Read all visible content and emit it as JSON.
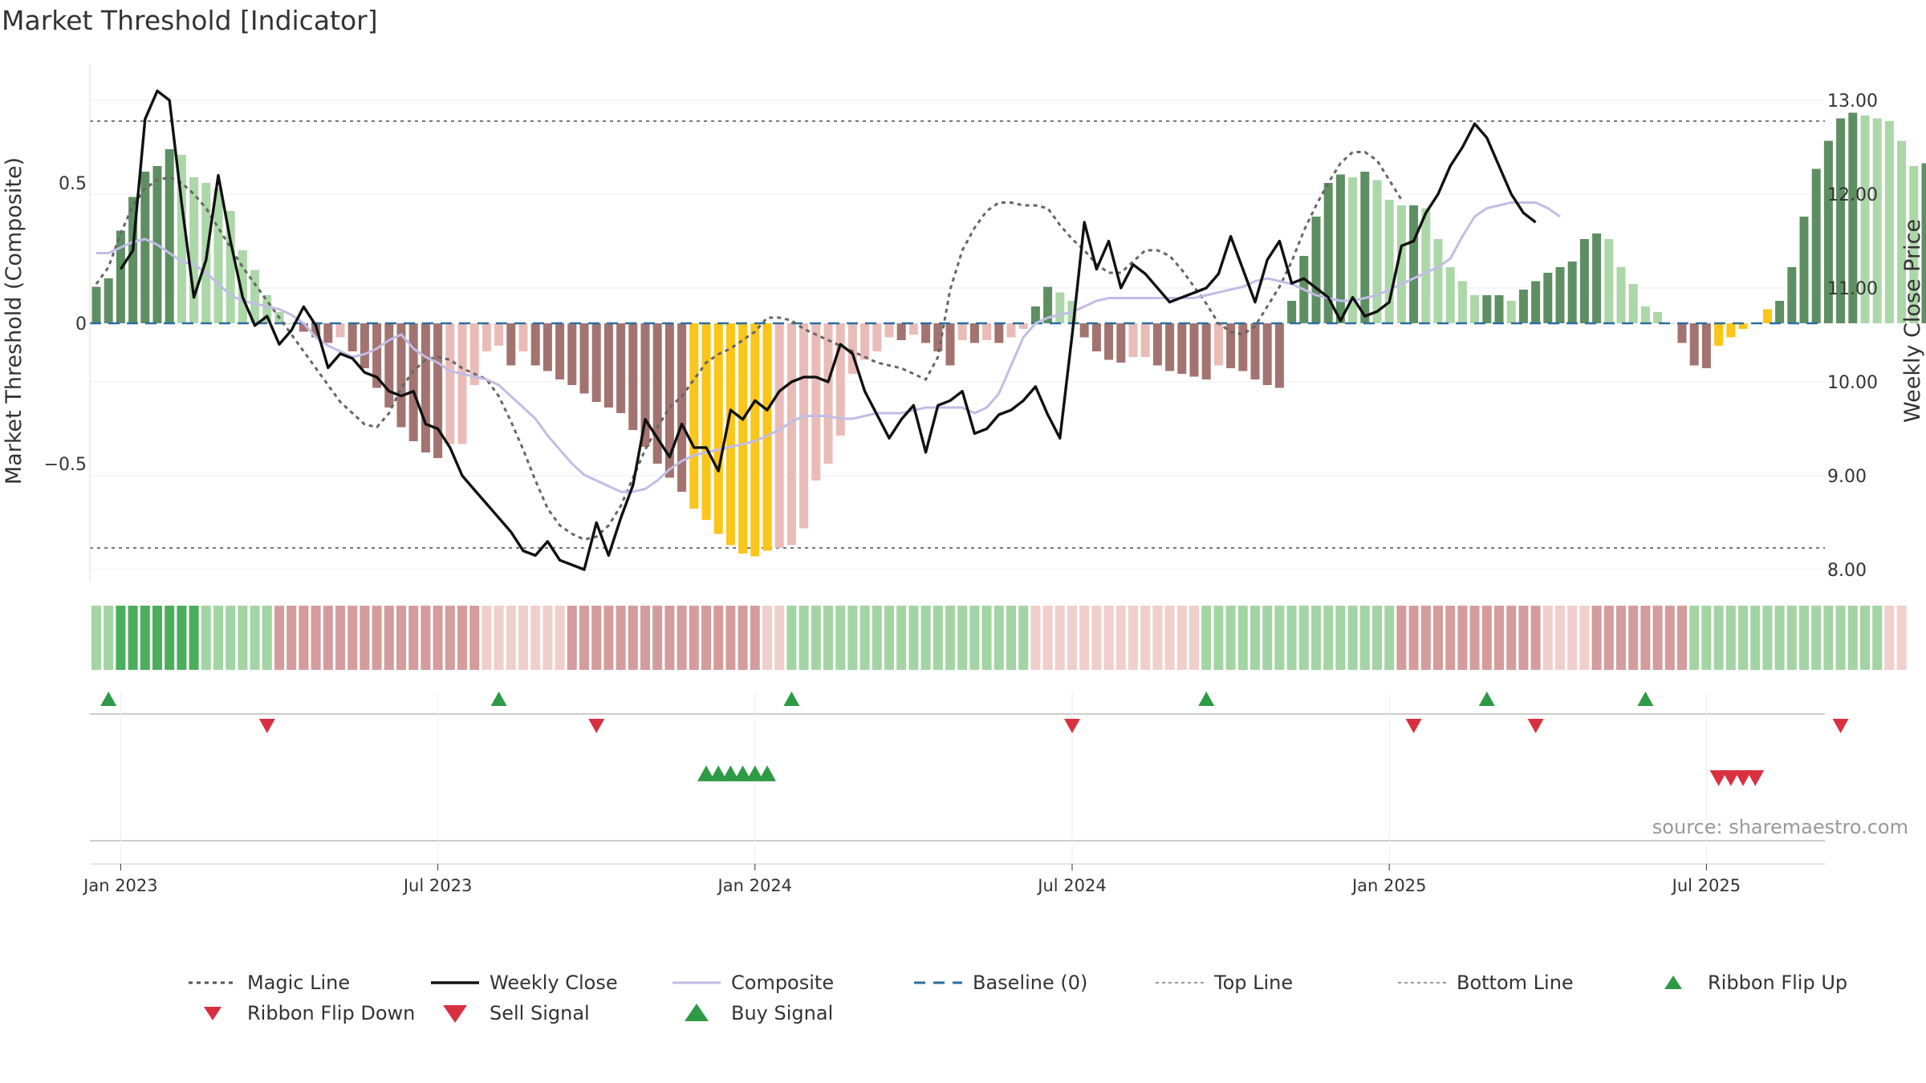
{
  "title": "Market Threshold [Indicator]",
  "source": "source: sharemaestro.com",
  "colors": {
    "bar_pos_strong": "#5e8f62",
    "bar_pos_weak": "#acd7a8",
    "bar_neg_strong": "#a37370",
    "bar_neg_weak": "#eabcb7",
    "bar_extreme": "#fbc51a",
    "weekly_close": "#111111",
    "composite": "#c1bde6",
    "magic_line": "#666666",
    "baseline": "#2b6ea0",
    "threshold_line": "#777777",
    "buy": "#2e9a45",
    "sell": "#d93040"
  },
  "chart_data": {
    "type": "bar",
    "title": "Market Threshold [Indicator]",
    "ylabel": "Market Threshold (Composite)",
    "y2label": "Weekly Close Price",
    "ylim": [
      -0.92,
      0.92
    ],
    "y2lim": [
      7.8,
      13.4
    ],
    "y_ticks": [
      "0.5",
      "0",
      "−0.5"
    ],
    "y_tick_values": [
      0.5,
      0,
      -0.5
    ],
    "y2_ticks": [
      "13.00",
      "12.00",
      "11.00",
      "10.00",
      "9.00",
      "8.00"
    ],
    "y2_tick_values": [
      13,
      12,
      11,
      10,
      9,
      8
    ],
    "x_ticks": [
      "Jan 2023",
      "Jul 2023",
      "Jan 2024",
      "Jul 2024",
      "Jan 2025",
      "Jul 2025"
    ],
    "x_tick_weeks": [
      2,
      28,
      54,
      80,
      106,
      132
    ],
    "top_line": 0.72,
    "bottom_line": -0.8,
    "baseline": 0,
    "week_start": "2022-12-19",
    "series": [
      {
        "name": "Composite",
        "values": [
          0.25,
          0.25,
          0.27,
          0.29,
          0.3,
          0.28,
          0.25,
          0.22,
          0.21,
          0.18,
          0.14,
          0.1,
          0.08,
          0.07,
          0.06,
          0.05,
          0.03,
          0.0,
          -0.05,
          -0.08,
          -0.1,
          -0.12,
          -0.11,
          -0.09,
          -0.06,
          -0.04,
          -0.09,
          -0.12,
          -0.14,
          -0.17,
          -0.18,
          -0.19,
          -0.2,
          -0.22,
          -0.26,
          -0.3,
          -0.34,
          -0.4,
          -0.45,
          -0.5,
          -0.54,
          -0.56,
          -0.58,
          -0.6,
          -0.6,
          -0.59,
          -0.56,
          -0.52,
          -0.49,
          -0.47,
          -0.46,
          -0.45,
          -0.44,
          -0.43,
          -0.42,
          -0.4,
          -0.38,
          -0.35,
          -0.33,
          -0.33,
          -0.33,
          -0.34,
          -0.34,
          -0.33,
          -0.32,
          -0.32,
          -0.32,
          -0.31,
          -0.3,
          -0.3,
          -0.3,
          -0.3,
          -0.32,
          -0.3,
          -0.25,
          -0.15,
          -0.05,
          0.0,
          0.02,
          0.03,
          0.04,
          0.06,
          0.08,
          0.09,
          0.09,
          0.09,
          0.09,
          0.09,
          0.09,
          0.09,
          0.09,
          0.1,
          0.11,
          0.12,
          0.13,
          0.15,
          0.16,
          0.15,
          0.14,
          0.12,
          0.1,
          0.09,
          0.08,
          0.08,
          0.09,
          0.1,
          0.12,
          0.14,
          0.16,
          0.18,
          0.2,
          0.23,
          0.31,
          0.38,
          0.41,
          0.42,
          0.43,
          0.43,
          0.43,
          0.41,
          0.38
        ],
        "x_start": 0
      },
      {
        "name": "Weekly Close",
        "values": [
          11.2,
          11.4,
          12.8,
          13.1,
          13.0,
          11.9,
          10.9,
          11.3,
          12.2,
          11.5,
          10.9,
          10.6,
          10.7,
          10.4,
          10.55,
          10.8,
          10.6,
          10.15,
          10.3,
          10.25,
          10.1,
          10.05,
          9.9,
          9.85,
          9.9,
          9.55,
          9.5,
          9.3,
          9.0,
          8.85,
          8.7,
          8.55,
          8.4,
          8.2,
          8.15,
          8.3,
          8.1,
          8.05,
          8.0,
          8.5,
          8.15,
          8.55,
          8.9,
          9.6,
          9.4,
          9.2,
          9.55,
          9.3,
          9.3,
          9.05,
          9.7,
          9.6,
          9.8,
          9.7,
          9.9,
          10.0,
          10.05,
          10.05,
          10.0,
          10.4,
          10.3,
          9.9,
          9.65,
          9.4,
          9.6,
          9.75,
          9.25,
          9.75,
          9.8,
          9.9,
          9.45,
          9.5,
          9.65,
          9.7,
          9.8,
          9.95,
          9.65,
          9.4,
          10.5,
          11.7,
          11.2,
          11.5,
          11.0,
          11.25,
          11.15,
          11.0,
          10.85,
          10.9,
          10.95,
          11.0,
          11.15,
          11.55,
          11.2,
          10.85,
          11.3,
          11.5,
          11.05,
          11.1,
          11.0,
          10.9,
          10.65,
          10.9,
          10.7,
          10.75,
          10.85,
          11.45,
          11.5,
          11.8,
          12.0,
          12.3,
          12.5,
          12.75,
          12.6,
          12.3,
          12.0,
          11.8,
          11.7
        ],
        "x_start": 2
      },
      {
        "name": "Magic Line",
        "values": [
          0.14,
          0.2,
          0.32,
          0.42,
          0.48,
          0.51,
          0.52,
          0.5,
          0.46,
          0.41,
          0.34,
          0.27,
          0.2,
          0.14,
          0.08,
          0.02,
          -0.04,
          -0.1,
          -0.16,
          -0.22,
          -0.28,
          -0.32,
          -0.36,
          -0.37,
          -0.32,
          -0.23,
          -0.17,
          -0.13,
          -0.12,
          -0.13,
          -0.16,
          -0.18,
          -0.2,
          -0.26,
          -0.35,
          -0.45,
          -0.56,
          -0.66,
          -0.72,
          -0.75,
          -0.77,
          -0.76,
          -0.72,
          -0.65,
          -0.55,
          -0.45,
          -0.37,
          -0.3,
          -0.26,
          -0.2,
          -0.14,
          -0.11,
          -0.09,
          -0.06,
          -0.03,
          0.02,
          0.02,
          0.01,
          -0.02,
          -0.04,
          -0.06,
          -0.08,
          -0.1,
          -0.12,
          -0.14,
          -0.15,
          -0.16,
          -0.18,
          -0.2,
          -0.12,
          0.12,
          0.26,
          0.34,
          0.4,
          0.43,
          0.43,
          0.42,
          0.42,
          0.41,
          0.35,
          0.3,
          0.26,
          0.21,
          0.18,
          0.18,
          0.22,
          0.26,
          0.26,
          0.24,
          0.19,
          0.13,
          0.07,
          0.0,
          -0.03,
          -0.04,
          -0.01,
          0.06,
          0.13,
          0.22,
          0.33,
          0.42,
          0.5,
          0.57,
          0.61,
          0.61,
          0.58,
          0.51,
          0.44
        ],
        "x_start": 0
      },
      {
        "name": "Market Threshold (Composite)",
        "values": [
          0.13,
          0.16,
          0.33,
          0.45,
          0.54,
          0.56,
          0.62,
          0.6,
          0.52,
          0.5,
          0.48,
          0.4,
          0.26,
          0.19,
          0.1,
          0.04,
          0.0,
          -0.03,
          -0.05,
          -0.07,
          -0.05,
          -0.1,
          -0.16,
          -0.23,
          -0.3,
          -0.37,
          -0.42,
          -0.46,
          -0.48,
          -0.43,
          -0.43,
          -0.22,
          -0.1,
          -0.08,
          -0.15,
          -0.1,
          -0.15,
          -0.17,
          -0.2,
          -0.22,
          -0.25,
          -0.28,
          -0.3,
          -0.32,
          -0.38,
          -0.44,
          -0.5,
          -0.55,
          -0.6,
          -0.66,
          -0.7,
          -0.75,
          -0.79,
          -0.82,
          -0.83,
          -0.81,
          -0.8,
          -0.79,
          -0.73,
          -0.56,
          -0.5,
          -0.4,
          -0.18,
          -0.13,
          -0.1,
          -0.05,
          -0.06,
          -0.04,
          -0.07,
          -0.1,
          -0.15,
          -0.06,
          -0.07,
          -0.06,
          -0.07,
          -0.05,
          -0.02,
          0.06,
          0.13,
          0.11,
          0.08,
          -0.05,
          -0.1,
          -0.13,
          -0.14,
          -0.12,
          -0.12,
          -0.15,
          -0.17,
          -0.18,
          -0.19,
          -0.2,
          -0.15,
          -0.16,
          -0.17,
          -0.2,
          -0.22,
          -0.23,
          0.08,
          0.24,
          0.38,
          0.5,
          0.53,
          0.52,
          0.54,
          0.51,
          0.44,
          0.42,
          0.42,
          0.41,
          0.3,
          0.2,
          0.15,
          0.1,
          0.1,
          0.1,
          0.08,
          0.12,
          0.15,
          0.18,
          0.2,
          0.22,
          0.3,
          0.32,
          0.3,
          0.2,
          0.14,
          0.06,
          0.04,
          0.0,
          -0.07,
          -0.15,
          -0.16,
          -0.08,
          -0.05,
          -0.02,
          0.0,
          0.05,
          0.08,
          0.2,
          0.38,
          0.55,
          0.65,
          0.73,
          0.75,
          0.74,
          0.73,
          0.72,
          0.65,
          0.56,
          0.57,
          0.46,
          0.32,
          0.25
        ],
        "x_start": 0
      }
    ],
    "extreme_bars": [
      [
        49,
        55
      ],
      [
        133,
        137
      ]
    ],
    "ribbon": "ppPPPPPPPppppppNNNNNNNNNNNNNNNNNnnnnnnnNNNNNNNNNNNNNNNNnnppppppppppppppppppppnnnnnnnnnnnnnnppppppppppppppppNNNNNNNNNNNNnnnnNNNNNNNNppppppppppppppppnn",
    "ribbon_flip_up": [
      1,
      33,
      57,
      91,
      114,
      127
    ],
    "ribbon_flip_down": [
      14,
      41,
      80,
      108,
      118,
      143
    ],
    "buy_signal": [
      50,
      51,
      52,
      53,
      54,
      55
    ],
    "sell_signal": [
      133,
      134,
      135,
      136
    ]
  },
  "legend": [
    {
      "label": "Magic Line",
      "kind": "dotted-line"
    },
    {
      "label": "Weekly Close",
      "kind": "solid-line"
    },
    {
      "label": "Composite",
      "kind": "lavender-line"
    },
    {
      "label": "Baseline (0)",
      "kind": "dashed-blue"
    },
    {
      "label": "Top Line",
      "kind": "dotted-gray"
    },
    {
      "label": "Bottom Line",
      "kind": "dotted-gray"
    },
    {
      "label": "Ribbon Flip Up",
      "kind": "small-up"
    },
    {
      "label": "Ribbon Flip Down",
      "kind": "small-down"
    },
    {
      "label": "Sell Signal",
      "kind": "big-down"
    },
    {
      "label": "Buy Signal",
      "kind": "big-up"
    }
  ]
}
